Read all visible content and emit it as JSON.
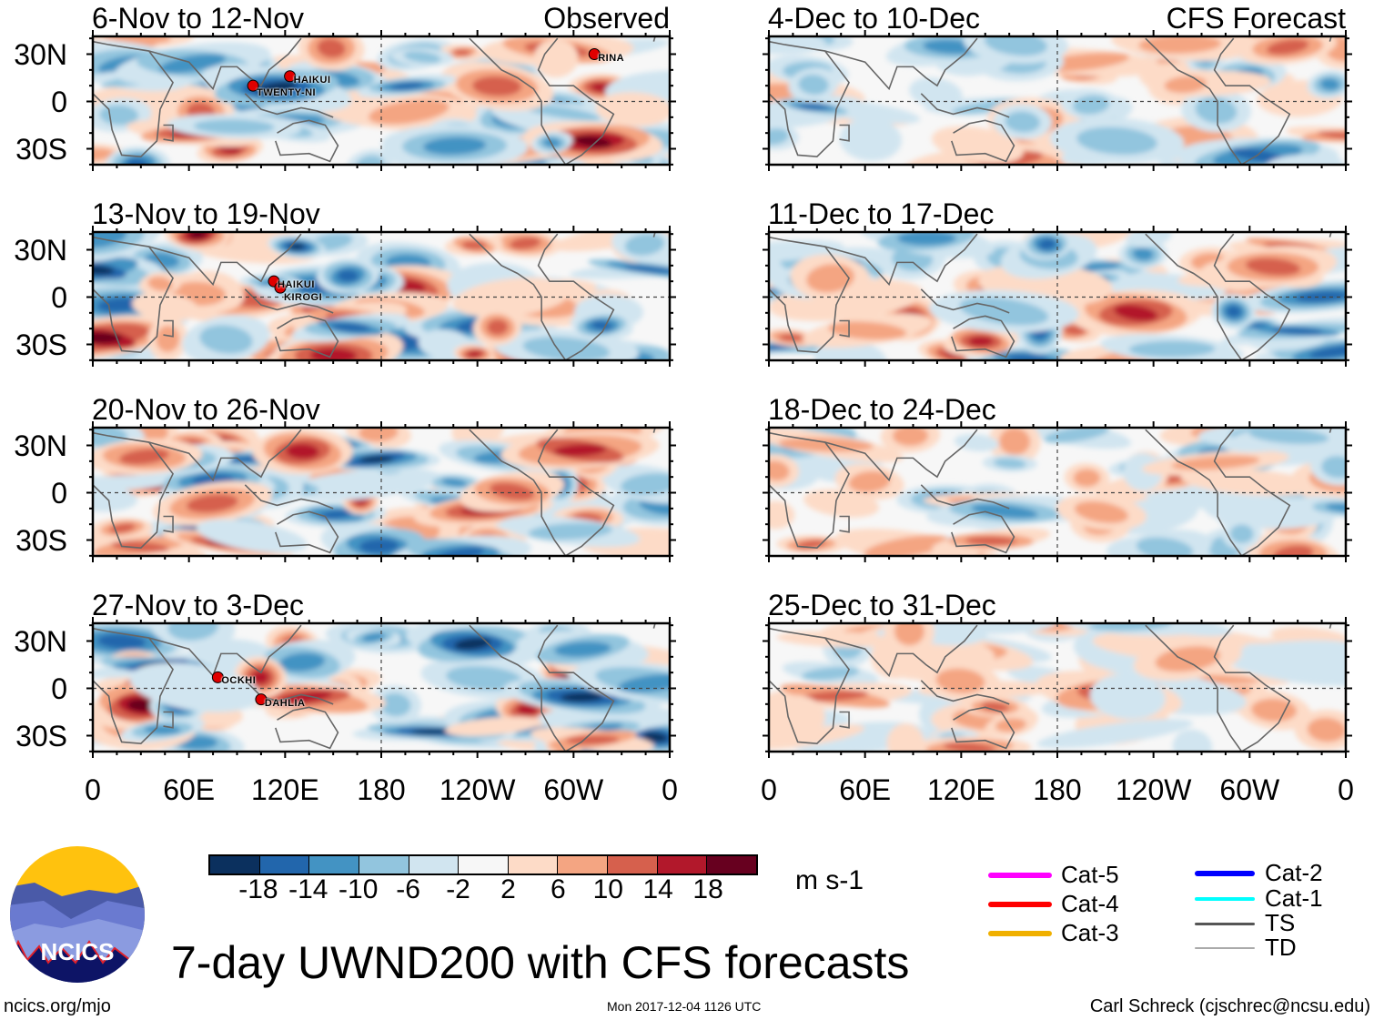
{
  "panels_left_header": "Observed",
  "panels_right_header": "CFS Forecast",
  "panels": [
    {
      "title": "6-Nov to 12-Nov",
      "group": "observed",
      "storms": [
        {
          "name": "TWENTY-NI",
          "lon": 100,
          "lat": 10
        },
        {
          "name": "HAIKUI",
          "lon": 123,
          "lat": 16
        },
        {
          "name": "RINA",
          "lon": 313,
          "lat": 30
        }
      ]
    },
    {
      "title": "13-Nov to 19-Nov",
      "group": "observed",
      "storms": [
        {
          "name": "HAIKUI",
          "lon": 113,
          "lat": 10
        },
        {
          "name": "KIROGI",
          "lon": 117,
          "lat": 6
        }
      ]
    },
    {
      "title": "20-Nov to 26-Nov",
      "group": "observed",
      "storms": []
    },
    {
      "title": "27-Nov to 3-Dec",
      "group": "observed",
      "storms": [
        {
          "name": "OCKHI",
          "lon": 78,
          "lat": 7
        },
        {
          "name": "DAHLIA",
          "lon": 105,
          "lat": -7
        }
      ]
    },
    {
      "title": "4-Dec to 10-Dec",
      "group": "forecast",
      "storms": []
    },
    {
      "title": "11-Dec to 17-Dec",
      "group": "forecast",
      "storms": []
    },
    {
      "title": "18-Dec to 24-Dec",
      "group": "forecast",
      "storms": []
    },
    {
      "title": "25-Dec to 31-Dec",
      "group": "forecast",
      "storms": []
    }
  ],
  "lat_labels": [
    "30N",
    "0",
    "30S"
  ],
  "lon_labels": [
    "0",
    "60E",
    "120E",
    "180",
    "120W",
    "60W",
    "0"
  ],
  "colorbar": {
    "labels": [
      "-18",
      "-14",
      "-10",
      "-6",
      "-2",
      "2",
      "6",
      "10",
      "14",
      "18"
    ],
    "colors": [
      "#0b305e",
      "#2266ac",
      "#4393c3",
      "#92c5de",
      "#d1e5f0",
      "#f7f7f7",
      "#fddbc7",
      "#f4a582",
      "#d6604d",
      "#b2182b",
      "#67001f"
    ],
    "units": "m s-1"
  },
  "legend": [
    {
      "label": "Cat-5",
      "color": "#ff00ff"
    },
    {
      "label": "Cat-4",
      "color": "#ff0000"
    },
    {
      "label": "Cat-3",
      "color": "#f0b000"
    },
    {
      "label": "Cat-2",
      "color": "#0000ff"
    },
    {
      "label": "Cat-1",
      "color": "#00ffff"
    },
    {
      "label": "TS",
      "color": "#555555"
    },
    {
      "label": "TD",
      "color": "#aaaaaa"
    }
  ],
  "logo_text": "NCICS",
  "main_title": "7-day UWND200 with CFS forecasts",
  "footer": {
    "left": "ncics.org/mjo",
    "center": "Mon 2017-12-04 1126 UTC",
    "right": "Carl Schreck (cjschrec@ncsu.edu)"
  }
}
